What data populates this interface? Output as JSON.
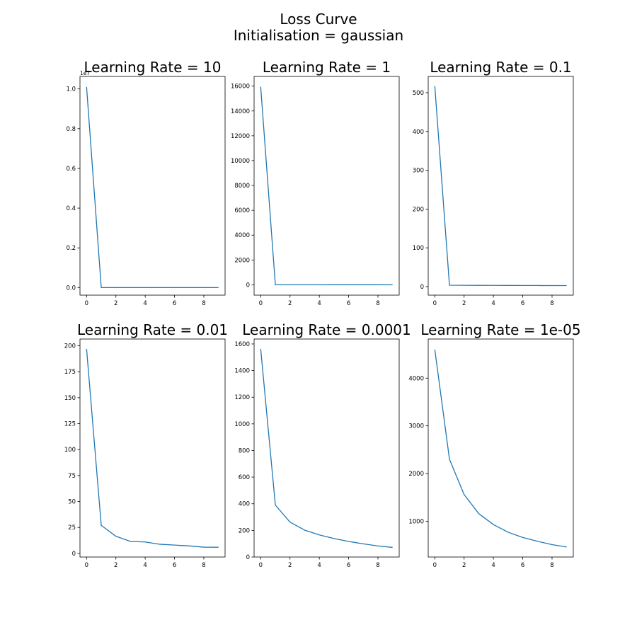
{
  "figure": {
    "title_line1": "Loss Curve",
    "title_line2": "Initialisation = gaussian",
    "line_color": "#1f77b4"
  },
  "chart_data": [
    {
      "type": "line",
      "title": "Learning Rate = 10",
      "x": [
        0,
        1,
        2,
        3,
        4,
        5,
        6,
        7,
        8,
        9
      ],
      "y": [
        10100000,
        1500,
        900,
        700,
        600,
        500,
        450,
        400,
        380,
        350
      ],
      "ylim": [
        -380000,
        10630000
      ],
      "xlim": [
        -0.45,
        9.45
      ],
      "yticks": [
        0,
        2000000,
        4000000,
        6000000,
        8000000,
        10000000
      ],
      "ytick_labels": [
        "0.0",
        "0.2",
        "0.4",
        "0.6",
        "0.8",
        "1.0"
      ],
      "offset_text": "1e7",
      "xticks": [
        0,
        2,
        4,
        6,
        8
      ],
      "xtick_labels": [
        "0",
        "2",
        "4",
        "6",
        "8"
      ]
    },
    {
      "type": "line",
      "title": "Learning Rate = 1",
      "x": [
        0,
        1,
        2,
        3,
        4,
        5,
        6,
        7,
        8,
        9
      ],
      "y": [
        15950,
        15,
        12,
        10,
        9,
        8,
        7,
        6,
        6,
        5
      ],
      "ylim": [
        -830,
        16780
      ],
      "xlim": [
        -0.45,
        9.45
      ],
      "yticks": [
        0,
        2000,
        4000,
        6000,
        8000,
        10000,
        12000,
        14000,
        16000
      ],
      "ytick_labels": [
        "0",
        "2000",
        "4000",
        "6000",
        "8000",
        "10000",
        "12000",
        "14000",
        "16000"
      ],
      "xticks": [
        0,
        2,
        4,
        6,
        8
      ],
      "xtick_labels": [
        "0",
        "2",
        "4",
        "6",
        "8"
      ]
    },
    {
      "type": "line",
      "title": "Learning Rate = 0.1",
      "x": [
        0,
        1,
        2,
        3,
        4,
        5,
        6,
        7,
        8,
        9
      ],
      "y": [
        517,
        3.5,
        3.3,
        3.2,
        3.1,
        3.0,
        2.9,
        2.8,
        2.7,
        2.6
      ],
      "ylim": [
        -22,
        542
      ],
      "xlim": [
        -0.45,
        9.45
      ],
      "yticks": [
        0,
        100,
        200,
        300,
        400,
        500
      ],
      "ytick_labels": [
        "0",
        "100",
        "200",
        "300",
        "400",
        "500"
      ],
      "xticks": [
        0,
        2,
        4,
        6,
        8
      ],
      "xtick_labels": [
        "0",
        "2",
        "4",
        "6",
        "8"
      ]
    },
    {
      "type": "line",
      "title": "Learning Rate = 0.01",
      "x": [
        0,
        1,
        2,
        3,
        4,
        5,
        6,
        7,
        8,
        9
      ],
      "y": [
        197,
        27,
        16.5,
        11.5,
        11,
        8.8,
        8,
        7.2,
        6,
        5.9
      ],
      "ylim": [
        -3.5,
        206.5
      ],
      "xlim": [
        -0.45,
        9.45
      ],
      "yticks": [
        0,
        25,
        50,
        75,
        100,
        125,
        150,
        175,
        200
      ],
      "ytick_labels": [
        "0",
        "25",
        "50",
        "75",
        "100",
        "125",
        "150",
        "175",
        "200"
      ],
      "xticks": [
        0,
        2,
        4,
        6,
        8
      ],
      "xtick_labels": [
        "0",
        "2",
        "4",
        "6",
        "8"
      ]
    },
    {
      "type": "line",
      "title": "Learning Rate = 0.0001",
      "x": [
        0,
        1,
        2,
        3,
        4,
        5,
        6,
        7,
        8,
        9
      ],
      "y": [
        1563,
        390,
        262,
        202,
        166,
        139,
        117,
        99,
        83,
        72
      ],
      "ylim": [
        0,
        1637
      ],
      "xlim": [
        -0.45,
        9.45
      ],
      "yticks": [
        0,
        200,
        400,
        600,
        800,
        1000,
        1200,
        1400,
        1600
      ],
      "ytick_labels": [
        "0",
        "200",
        "400",
        "600",
        "800",
        "1000",
        "1200",
        "1400",
        "1600"
      ],
      "xticks": [
        0,
        2,
        4,
        6,
        8
      ],
      "xtick_labels": [
        "0",
        "2",
        "4",
        "6",
        "8"
      ]
    },
    {
      "type": "line",
      "title": "Learning Rate = 1e-05",
      "x": [
        0,
        1,
        2,
        3,
        4,
        5,
        6,
        7,
        8,
        9
      ],
      "y": [
        4600,
        2300,
        1560,
        1160,
        930,
        770,
        660,
        580,
        510,
        460
      ],
      "ylim": [
        250,
        4820
      ],
      "xlim": [
        -0.45,
        9.45
      ],
      "yticks": [
        1000,
        2000,
        3000,
        4000
      ],
      "ytick_labels": [
        "1000",
        "2000",
        "3000",
        "4000"
      ],
      "xticks": [
        0,
        2,
        4,
        6,
        8
      ],
      "xtick_labels": [
        "0",
        "2",
        "4",
        "6",
        "8"
      ]
    }
  ]
}
